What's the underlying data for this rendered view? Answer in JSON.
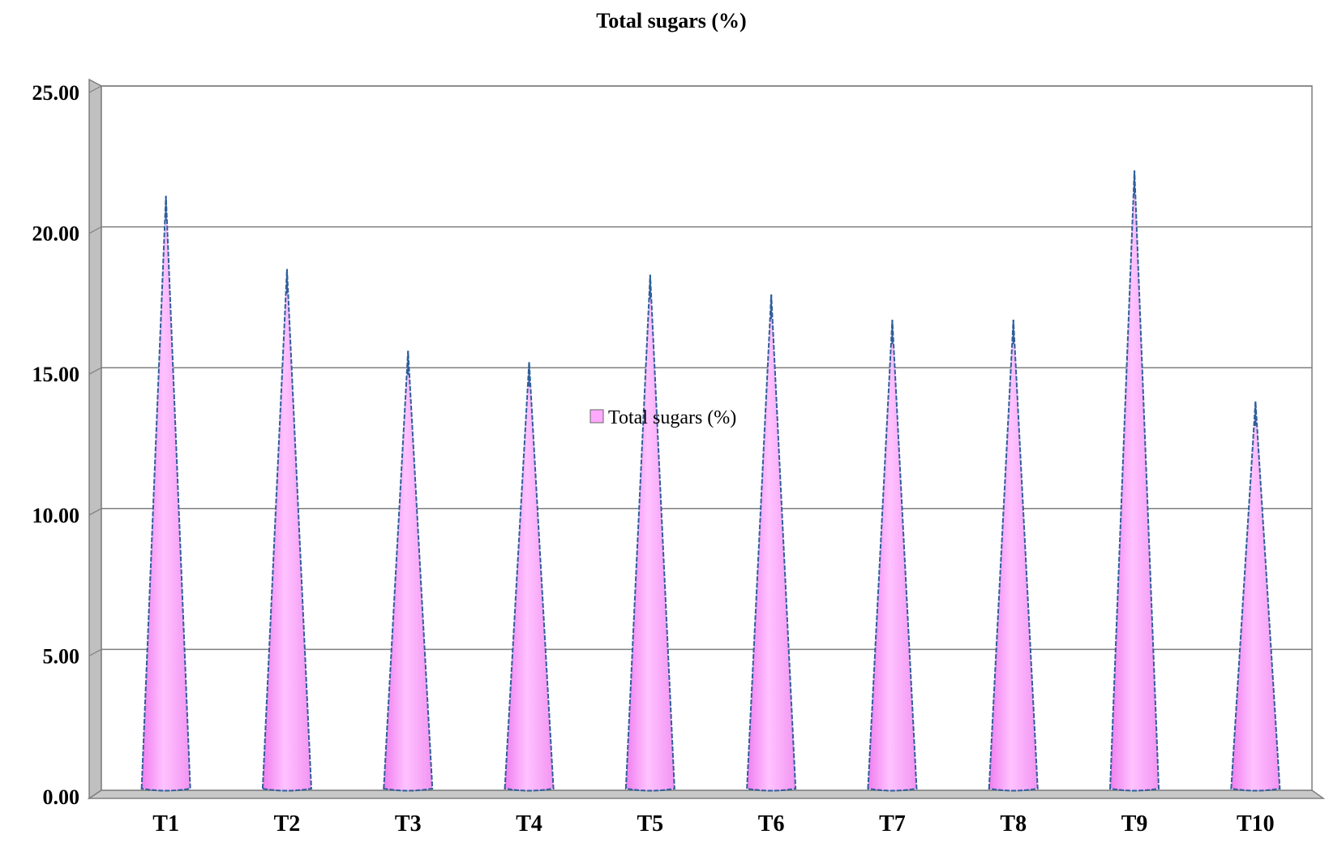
{
  "chart_data": {
    "type": "bar",
    "title": "Total sugars (%)",
    "xlabel": "",
    "ylabel": "",
    "categories": [
      "T1",
      "T2",
      "T3",
      "T4",
      "T5",
      "T6",
      "T7",
      "T8",
      "T9",
      "T10"
    ],
    "series": [
      {
        "name": "Total sugars (%)",
        "values": [
          21.1,
          18.5,
          15.6,
          15.2,
          18.3,
          17.6,
          16.7,
          16.7,
          22.0,
          13.8
        ],
        "color": "#ffaaff"
      }
    ],
    "ylim": [
      0,
      25
    ],
    "yticks": [
      "0.00",
      "5.00",
      "10.00",
      "15.00",
      "20.00",
      "25.00"
    ],
    "grid": true,
    "legend": "center",
    "bar_shape": "cone",
    "colors": {
      "bar_fill": "#ffaaff",
      "bar_edge": "#2f5f9a",
      "gridline": "#7f7f7f",
      "side_wall": "#c0c0c0"
    }
  }
}
